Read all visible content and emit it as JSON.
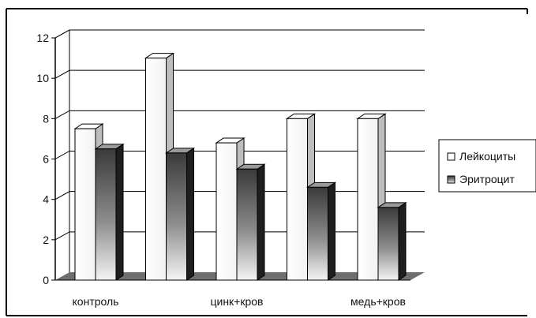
{
  "chart_data": {
    "type": "bar",
    "title": "",
    "xlabel": "",
    "ylabel": "",
    "categories": [
      "контроль",
      "",
      "цинк+кров",
      "",
      "медь+кров"
    ],
    "series": [
      {
        "name": "Лейкоциты",
        "values": [
          7.5,
          11.0,
          6.8,
          8.0,
          8.0
        ]
      },
      {
        "name": "Эритроцит",
        "values": [
          6.5,
          6.3,
          5.5,
          4.6,
          3.6
        ]
      }
    ],
    "ylim": [
      0,
      12
    ],
    "yticks": [
      0,
      2,
      4,
      6,
      8,
      10,
      12
    ],
    "grid": true,
    "legend": "right",
    "style": "3d-column"
  },
  "colors": {
    "leukocytes_fill": "#ffffff",
    "erythrocytes_fill": "#7a7a7a",
    "grid": "#000000",
    "floor": "#6e6e6e"
  }
}
